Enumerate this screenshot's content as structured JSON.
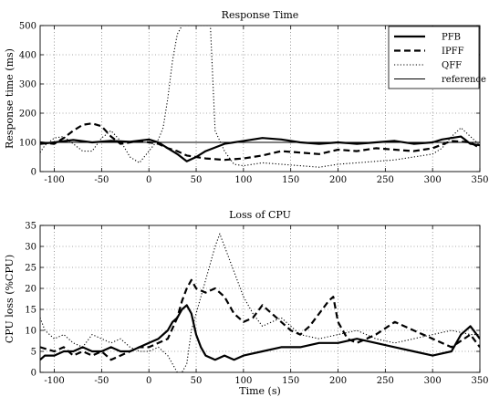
{
  "chart_data": [
    {
      "type": "line",
      "title": "Response Time",
      "xlabel": "",
      "ylabel": "Response time (ms)",
      "xlim": [
        -115,
        350
      ],
      "ylim": [
        0,
        500
      ],
      "xticks": [
        -100,
        -50,
        0,
        50,
        100,
        150,
        200,
        250,
        300,
        350
      ],
      "yticks": [
        0,
        100,
        200,
        300,
        400,
        500
      ],
      "grid": true,
      "legend": "top-right",
      "series": [
        {
          "name": "PFB",
          "style": "solid-thick",
          "color": "#000000",
          "x": [
            -115,
            -100,
            -80,
            -60,
            -40,
            -20,
            0,
            10,
            20,
            30,
            40,
            50,
            60,
            80,
            100,
            120,
            140,
            160,
            180,
            200,
            220,
            240,
            260,
            280,
            300,
            310,
            320,
            330,
            340,
            350
          ],
          "y": [
            95,
            100,
            108,
            100,
            105,
            102,
            110,
            100,
            80,
            60,
            35,
            50,
            70,
            95,
            105,
            115,
            110,
            100,
            95,
            100,
            95,
            100,
            105,
            95,
            100,
            110,
            115,
            120,
            95,
            90
          ]
        },
        {
          "name": "IPFF",
          "style": "dashed-thick",
          "color": "#000000",
          "x": [
            -115,
            -100,
            -90,
            -80,
            -70,
            -60,
            -50,
            -40,
            -30,
            -20,
            -10,
            0,
            10,
            20,
            30,
            40,
            50,
            60,
            80,
            100,
            120,
            140,
            160,
            180,
            200,
            220,
            240,
            260,
            280,
            300,
            320,
            340,
            350
          ],
          "y": [
            100,
            95,
            115,
            140,
            160,
            165,
            155,
            120,
            95,
            100,
            105,
            100,
            95,
            80,
            70,
            55,
            50,
            45,
            40,
            45,
            55,
            70,
            65,
            60,
            75,
            70,
            80,
            75,
            70,
            80,
            105,
            100,
            80
          ]
        },
        {
          "name": "QFF",
          "style": "dotted",
          "color": "#000000",
          "x": [
            -115,
            -110,
            -100,
            -90,
            -80,
            -70,
            -60,
            -50,
            -40,
            -30,
            -20,
            -10,
            0,
            10,
            15,
            20,
            25,
            30,
            35,
            40,
            45,
            50,
            55,
            60,
            65,
            70,
            80,
            90,
            100,
            120,
            140,
            160,
            180,
            200,
            220,
            240,
            260,
            280,
            300,
            310,
            320,
            330,
            340,
            350
          ],
          "y": [
            65,
            90,
            115,
            120,
            95,
            70,
            70,
            115,
            140,
            105,
            50,
            30,
            70,
            110,
            150,
            250,
            380,
            470,
            500,
            500,
            500,
            500,
            500,
            500,
            500,
            140,
            70,
            25,
            20,
            30,
            25,
            20,
            15,
            25,
            30,
            35,
            40,
            50,
            60,
            80,
            120,
            150,
            120,
            90
          ]
        },
        {
          "name": "reference",
          "style": "solid-thin",
          "color": "#000000",
          "x": [
            -115,
            350
          ],
          "y": [
            100,
            100
          ]
        }
      ]
    },
    {
      "type": "line",
      "title": "Loss of CPU",
      "xlabel": "Time (s)",
      "ylabel": "CPU loss (%CPU)",
      "xlim": [
        -115,
        350
      ],
      "ylim": [
        0,
        35
      ],
      "xticks": [
        -100,
        -50,
        0,
        50,
        100,
        150,
        200,
        250,
        300,
        350
      ],
      "yticks": [
        0,
        5,
        10,
        15,
        20,
        25,
        30,
        35
      ],
      "grid": true,
      "series": [
        {
          "name": "PFB",
          "style": "solid-thick",
          "color": "#000000",
          "x": [
            -115,
            -110,
            -100,
            -90,
            -80,
            -70,
            -60,
            -50,
            -40,
            -30,
            -20,
            -10,
            0,
            10,
            20,
            25,
            30,
            35,
            40,
            45,
            50,
            55,
            60,
            70,
            80,
            90,
            100,
            120,
            140,
            160,
            180,
            200,
            220,
            240,
            260,
            280,
            300,
            320,
            330,
            340,
            350
          ],
          "y": [
            3,
            4,
            4,
            5,
            5,
            6,
            5,
            5,
            6,
            5,
            5,
            6,
            7,
            8,
            10,
            12,
            13,
            15,
            16,
            14,
            9,
            6,
            4,
            3,
            4,
            3,
            4,
            5,
            6,
            6,
            7,
            7,
            8,
            7,
            6,
            5,
            4,
            5,
            9,
            11,
            8
          ]
        },
        {
          "name": "IPFF",
          "style": "dashed-thick",
          "color": "#000000",
          "x": [
            -115,
            -100,
            -90,
            -80,
            -70,
            -60,
            -50,
            -40,
            -30,
            -20,
            -10,
            0,
            10,
            20,
            30,
            35,
            40,
            45,
            50,
            60,
            70,
            80,
            90,
            100,
            110,
            120,
            130,
            140,
            150,
            160,
            170,
            180,
            190,
            195,
            200,
            210,
            220,
            240,
            260,
            280,
            300,
            320,
            340,
            350
          ],
          "y": [
            6,
            5,
            6,
            4,
            5,
            4,
            5,
            3,
            4,
            5,
            6,
            6,
            7,
            8,
            13,
            17,
            20,
            22,
            20,
            19,
            20,
            18,
            14,
            12,
            13,
            16,
            14,
            12,
            10,
            9,
            11,
            14,
            17,
            18,
            12,
            8,
            7,
            9,
            12,
            10,
            8,
            6,
            9,
            6
          ]
        },
        {
          "name": "QFF",
          "style": "dotted",
          "color": "#000000",
          "x": [
            -115,
            -110,
            -100,
            -90,
            -80,
            -70,
            -60,
            -50,
            -40,
            -30,
            -20,
            -10,
            0,
            10,
            20,
            30,
            35,
            40,
            45,
            50,
            55,
            60,
            65,
            70,
            75,
            80,
            90,
            100,
            110,
            120,
            140,
            160,
            180,
            200,
            220,
            240,
            260,
            280,
            300,
            320,
            340,
            350
          ],
          "y": [
            13,
            10,
            8,
            9,
            7,
            6,
            9,
            8,
            7,
            8,
            6,
            5,
            5,
            6,
            4,
            0,
            0,
            2,
            10,
            14,
            18,
            22,
            26,
            30,
            33,
            30,
            24,
            18,
            14,
            11,
            13,
            9,
            8,
            9,
            10,
            8,
            7,
            8,
            9,
            10,
            9,
            9
          ]
        }
      ]
    }
  ]
}
